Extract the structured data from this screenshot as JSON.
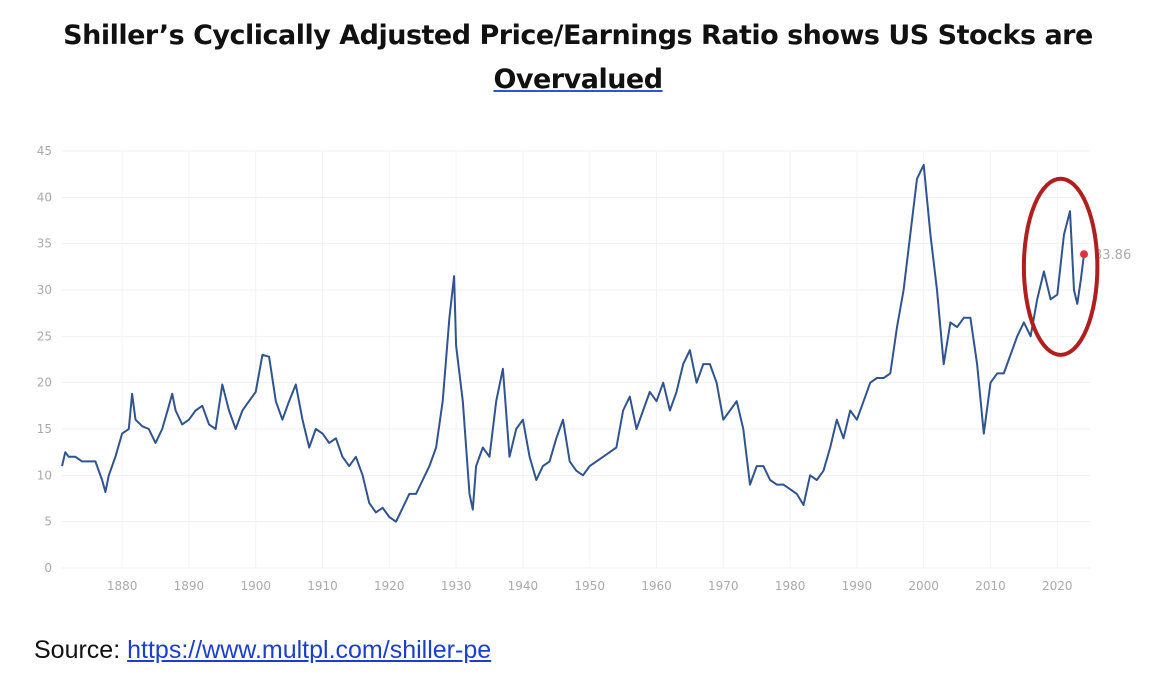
{
  "title": {
    "line1": "Shiller’s Cyclically Adjusted Price/Earnings Ratio shows US Stocks are",
    "line2": "Overvalued"
  },
  "source": {
    "label": "Source:",
    "link": "https://www.multpl.com/shiller-pe"
  },
  "chart_data": {
    "type": "line",
    "title": "",
    "xlabel": "",
    "ylabel": "",
    "xlim": [
      1871,
      2024
    ],
    "ylim": [
      0,
      45
    ],
    "yticks": [
      0,
      5,
      10,
      15,
      20,
      25,
      30,
      35,
      40,
      45
    ],
    "xticks": [
      1880,
      1890,
      1900,
      1910,
      1920,
      1930,
      1940,
      1950,
      1960,
      1970,
      1980,
      1990,
      2000,
      2010,
      2020
    ],
    "grid": true,
    "line_color": "#2f5490",
    "last_point": {
      "x": 2024,
      "y": 33.86,
      "label": "33.86",
      "color": "#e03040"
    },
    "annotation": {
      "type": "ellipse",
      "color": "#b01e1e",
      "x_range": [
        2015,
        2026
      ],
      "y_range": [
        23,
        42
      ]
    },
    "series": [
      {
        "x": [
          1871,
          1871.5,
          1872,
          1873,
          1874,
          1875,
          1876,
          1877,
          1877.5,
          1878,
          1879,
          1880,
          1881,
          1881.5,
          1882,
          1883,
          1884,
          1885,
          1886,
          1887,
          1887.5,
          1888,
          1889,
          1890,
          1891,
          1892,
          1893,
          1894,
          1895,
          1896,
          1897,
          1898,
          1899,
          1900,
          1901,
          1902,
          1903,
          1904,
          1905,
          1906,
          1907,
          1908,
          1909,
          1910,
          1911,
          1912,
          1913,
          1914,
          1915,
          1916,
          1917,
          1918,
          1919,
          1920,
          1921,
          1922,
          1923,
          1924,
          1925,
          1926,
          1927,
          1928,
          1929,
          1929.7,
          1930,
          1931,
          1932,
          1932.5,
          1933,
          1934,
          1935,
          1936,
          1937,
          1938,
          1939,
          1940,
          1941,
          1942,
          1943,
          1944,
          1945,
          1946,
          1947,
          1948,
          1949,
          1950,
          1951,
          1952,
          1953,
          1954,
          1955,
          1956,
          1957,
          1958,
          1959,
          1960,
          1961,
          1962,
          1963,
          1964,
          1965,
          1966,
          1967,
          1968,
          1969,
          1970,
          1971,
          1972,
          1973,
          1974,
          1975,
          1976,
          1977,
          1978,
          1979,
          1980,
          1981,
          1982,
          1983,
          1984,
          1985,
          1986,
          1987,
          1988,
          1989,
          1990,
          1991,
          1992,
          1993,
          1994,
          1995,
          1996,
          1997,
          1998,
          1999,
          2000,
          2001,
          2002,
          2003,
          2004,
          2005,
          2006,
          2007,
          2008,
          2009,
          2010,
          2011,
          2012,
          2013,
          2014,
          2015,
          2016,
          2017,
          2018,
          2019,
          2020,
          2021,
          2021.9,
          2022.5,
          2023,
          2023.5,
          2024
        ],
        "y": [
          11,
          12.5,
          12,
          12,
          11.5,
          11.5,
          11.5,
          9.5,
          8.2,
          10,
          12,
          14.5,
          15,
          18.8,
          16,
          15.3,
          15,
          13.5,
          15,
          17.5,
          18.8,
          17,
          15.5,
          16,
          17,
          17.5,
          15.5,
          15,
          19.8,
          17,
          15,
          17,
          18,
          19,
          23,
          22.8,
          18,
          16,
          18,
          19.8,
          16,
          13,
          15,
          14.5,
          13.5,
          14,
          12,
          11,
          12,
          10,
          7,
          6,
          6.5,
          5.5,
          5,
          6.5,
          8,
          8,
          9.5,
          11,
          13,
          18,
          27,
          31.5,
          24,
          18,
          8,
          6.3,
          11,
          13,
          12,
          18,
          21.5,
          12,
          15,
          16,
          12,
          9.5,
          11,
          11.5,
          14,
          16,
          11.5,
          10.5,
          10,
          11,
          11.5,
          12,
          12.5,
          13,
          17,
          18.5,
          15,
          17,
          19,
          18,
          20,
          17,
          19,
          22,
          23.5,
          20,
          22,
          22,
          20,
          16,
          17,
          18,
          15,
          9,
          11,
          11,
          9.5,
          9,
          9,
          8.5,
          8,
          6.8,
          10,
          9.5,
          10.5,
          13,
          16,
          14,
          17,
          16,
          18,
          20,
          20.5,
          20.5,
          21,
          26,
          30,
          36,
          42,
          43.5,
          36,
          30,
          22,
          26.5,
          26,
          27,
          27,
          22,
          14.5,
          20,
          21,
          21,
          23,
          25,
          26.5,
          25,
          29,
          32,
          29,
          29.5,
          36,
          38.5,
          30,
          28.5,
          31,
          33.86
        ]
      }
    ]
  }
}
